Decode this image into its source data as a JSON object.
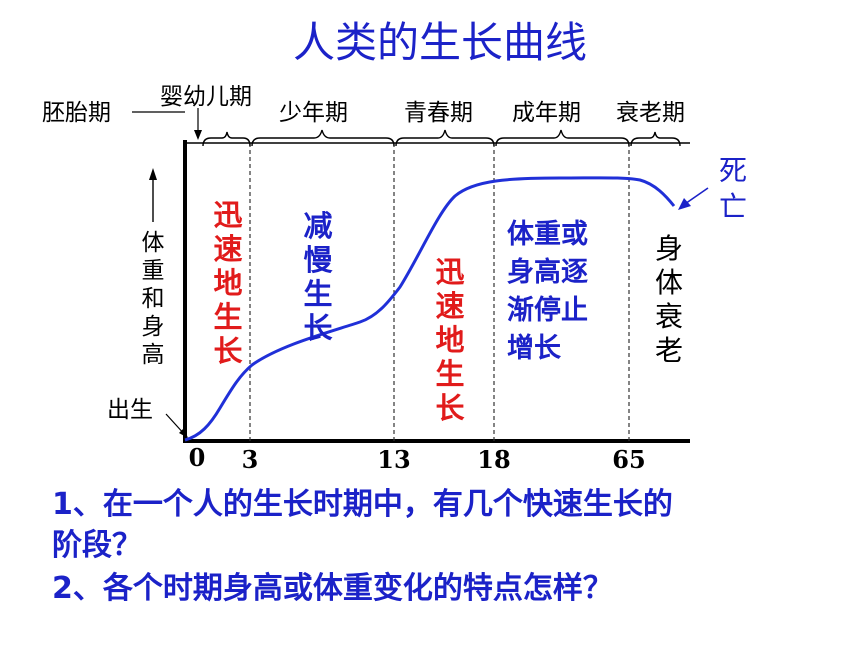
{
  "title": "人类的生长曲线",
  "stages": {
    "embryo": "胚胎期",
    "infant": "婴幼儿期",
    "youth": "少年期",
    "puberty": "青春期",
    "adult": "成年期",
    "aging": "衰老期"
  },
  "y_axis_label": "体重和身高",
  "birth_label": "出生",
  "death_label": "死亡",
  "x_ticks": [
    "0",
    "3",
    "13",
    "18",
    "65"
  ],
  "phase_texts": {
    "rapid1": "迅速地生长",
    "slow": "减慢生长",
    "rapid2": "迅速地生长",
    "plateau": [
      "体重或",
      "身高逐",
      "渐停止",
      "增长"
    ],
    "decline": "身体衰老"
  },
  "colors": {
    "blue": "#1b22c8",
    "red": "#e11b1b",
    "black": "#000000",
    "curve": "#2030d8"
  },
  "questions": {
    "q1_line1": "1、在一个人的生长时期中，有几个快速生长的",
    "q1_line2": "阶段？",
    "q2": "2、各个时期身高或体重变化的特点怎样？"
  }
}
